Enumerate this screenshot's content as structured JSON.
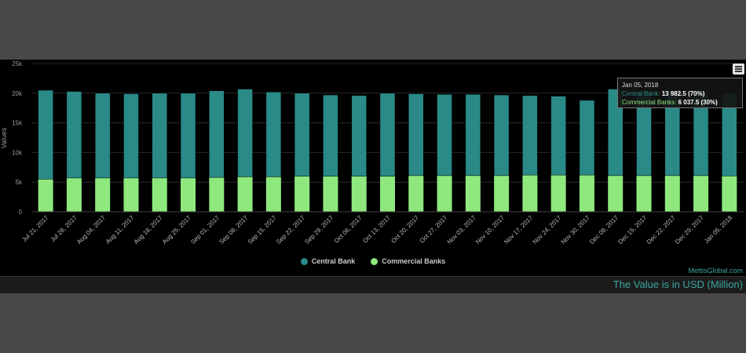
{
  "chart_data": {
    "type": "bar",
    "stacked": true,
    "ylabel": "Values",
    "ylim": [
      0,
      25000
    ],
    "yticks": [
      "0",
      "5k",
      "10k",
      "15k",
      "20k",
      "25k"
    ],
    "categories": [
      "Jul 21, 2017",
      "Jul 28, 2017",
      "Aug 04, 2017",
      "Aug 11, 2017",
      "Aug 18, 2017",
      "Aug 25, 2017",
      "Sep 01, 2017",
      "Sep 08, 2017",
      "Sep 15, 2017",
      "Sep 22, 2017",
      "Sep 29, 2017",
      "Oct 06, 2017",
      "Oct 13, 2017",
      "Oct 20, 2017",
      "Oct 27, 2017",
      "Nov 03, 2017",
      "Nov 10, 2017",
      "Nov 17, 2017",
      "Nov 24, 2017",
      "Nov 30, 2017",
      "Dec 08, 2017",
      "Dec 15, 2017",
      "Dec 22, 2017",
      "Dec 29, 2017",
      "Jan 05, 2018"
    ],
    "series": [
      {
        "name": "Central Bank",
        "color": "#2a8a88",
        "values": [
          15000,
          14600,
          14300,
          14200,
          14300,
          14300,
          14600,
          14800,
          14300,
          14000,
          13700,
          13600,
          14000,
          13800,
          13700,
          13700,
          13600,
          13400,
          13300,
          12600,
          14600,
          14300,
          14200,
          14100,
          13982.5
        ]
      },
      {
        "name": "Commercial Banks",
        "color": "#8ee87e",
        "values": [
          5500,
          5700,
          5700,
          5700,
          5700,
          5700,
          5800,
          5900,
          5900,
          6000,
          6000,
          6000,
          6000,
          6100,
          6100,
          6100,
          6100,
          6200,
          6200,
          6200,
          6100,
          6100,
          6100,
          6100,
          6037.5
        ]
      }
    ],
    "grid": true,
    "legend": "bottom-center"
  },
  "tooltip": {
    "date": "Jan 05, 2018",
    "line1_label": "Central Bank: ",
    "line1_value": "13 982.5 (70%)",
    "line2_label": "Commercial Banks: ",
    "line2_value": "6 037.5 (30%)"
  },
  "credit": "MettisGlobal.com",
  "footer_note": "The Value is in USD (Million)",
  "colors": {
    "central": "#2a8a88",
    "commercial": "#8ee87e",
    "accent": "#3aa6a0"
  }
}
